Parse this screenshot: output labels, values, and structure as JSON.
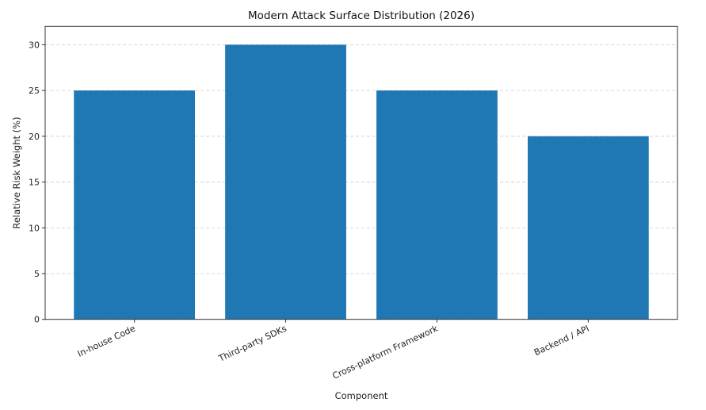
{
  "chart_data": {
    "type": "bar",
    "title": "Modern Attack Surface Distribution (2026)",
    "xlabel": "Component",
    "ylabel": "Relative Risk Weight (%)",
    "categories": [
      "In-house Code",
      "Third-party SDKs",
      "Cross-platform Framework",
      "Backend / API"
    ],
    "values": [
      25,
      30,
      25,
      20
    ],
    "ylim": [
      0,
      32
    ],
    "yticks": [
      0,
      5,
      10,
      15,
      20,
      25,
      30
    ],
    "grid": "y-dashed",
    "bar_color": "#1f77b4"
  }
}
